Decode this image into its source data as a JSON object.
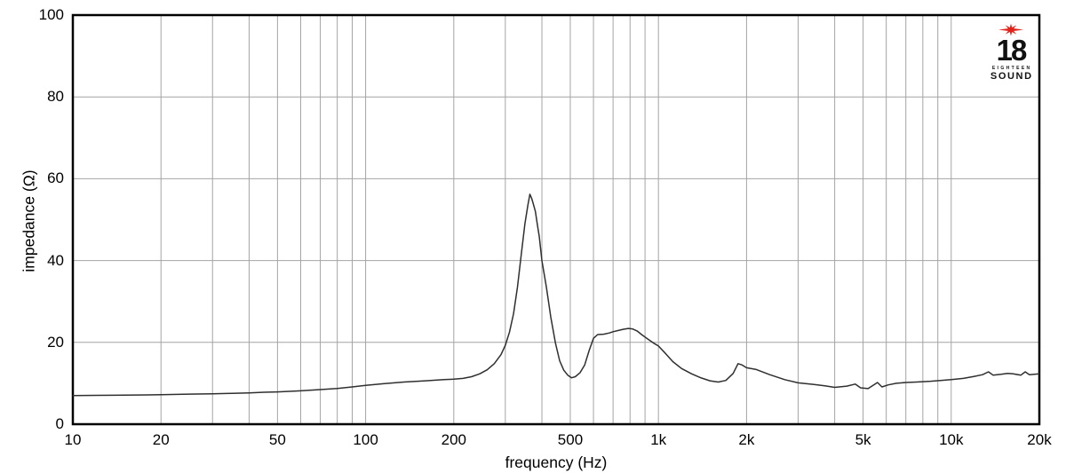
{
  "logo": {
    "number": "18",
    "brand_small": "EIGHTEEN",
    "brand": "SOUND",
    "star_color": "#e2231a",
    "text_color": "#111111"
  },
  "chart_data": {
    "type": "line",
    "title": "",
    "xlabel": "frequency (Hz)",
    "ylabel": "impedance (Ω)",
    "x_scale": "log",
    "x_range": [
      10,
      20000
    ],
    "y_range": [
      0,
      100
    ],
    "grid": true,
    "legend": "none",
    "line_color": "#2f2f2f",
    "grid_color": "#a4a4a4",
    "frame_color": "#000000",
    "x_ticks": [
      {
        "f": 10,
        "label": "10"
      },
      {
        "f": 20,
        "label": "20"
      },
      {
        "f": 50,
        "label": "50"
      },
      {
        "f": 100,
        "label": "100"
      },
      {
        "f": 200,
        "label": "200"
      },
      {
        "f": 500,
        "label": "500"
      },
      {
        "f": 1000,
        "label": "1k"
      },
      {
        "f": 2000,
        "label": "2k"
      },
      {
        "f": 5000,
        "label": "5k"
      },
      {
        "f": 10000,
        "label": "10k"
      },
      {
        "f": 20000,
        "label": "20k"
      }
    ],
    "x_gridlines": [
      20,
      30,
      40,
      50,
      60,
      70,
      80,
      90,
      100,
      200,
      300,
      400,
      500,
      600,
      700,
      800,
      900,
      1000,
      2000,
      3000,
      4000,
      5000,
      6000,
      7000,
      8000,
      9000,
      10000
    ],
    "y_ticks": [
      {
        "v": 0,
        "label": "0"
      },
      {
        "v": 20,
        "label": "20"
      },
      {
        "v": 40,
        "label": "40"
      },
      {
        "v": 60,
        "label": "60"
      },
      {
        "v": 80,
        "label": "80"
      },
      {
        "v": 100,
        "label": "100"
      }
    ],
    "y_gridlines": [
      20,
      40,
      60,
      80
    ],
    "series": [
      {
        "name": "impedance",
        "points": [
          [
            10,
            7.0
          ],
          [
            12,
            7.05
          ],
          [
            15,
            7.1
          ],
          [
            18,
            7.15
          ],
          [
            20,
            7.2
          ],
          [
            25,
            7.35
          ],
          [
            30,
            7.45
          ],
          [
            35,
            7.55
          ],
          [
            40,
            7.65
          ],
          [
            45,
            7.8
          ],
          [
            50,
            7.9
          ],
          [
            60,
            8.15
          ],
          [
            70,
            8.45
          ],
          [
            80,
            8.75
          ],
          [
            90,
            9.1
          ],
          [
            100,
            9.5
          ],
          [
            115,
            9.9
          ],
          [
            135,
            10.3
          ],
          [
            160,
            10.6
          ],
          [
            185,
            10.9
          ],
          [
            200,
            11.0
          ],
          [
            215,
            11.2
          ],
          [
            230,
            11.6
          ],
          [
            245,
            12.3
          ],
          [
            260,
            13.3
          ],
          [
            275,
            14.8
          ],
          [
            290,
            17.0
          ],
          [
            300,
            19.3
          ],
          [
            310,
            22.5
          ],
          [
            320,
            27.0
          ],
          [
            330,
            33.5
          ],
          [
            340,
            41.5
          ],
          [
            350,
            49.0
          ],
          [
            358,
            53.5
          ],
          [
            364,
            56.2
          ],
          [
            369,
            55.2
          ],
          [
            374,
            53.8
          ],
          [
            380,
            52.0
          ],
          [
            386,
            48.8
          ],
          [
            392,
            45.8
          ],
          [
            400,
            40.0
          ],
          [
            414,
            33.6
          ],
          [
            429,
            26.2
          ],
          [
            445,
            19.8
          ],
          [
            460,
            15.5
          ],
          [
            475,
            13.2
          ],
          [
            490,
            12.0
          ],
          [
            505,
            11.35
          ],
          [
            520,
            11.6
          ],
          [
            540,
            12.6
          ],
          [
            560,
            14.5
          ],
          [
            580,
            18.0
          ],
          [
            600,
            21.0
          ],
          [
            620,
            21.9
          ],
          [
            650,
            22.0
          ],
          [
            680,
            22.3
          ],
          [
            700,
            22.6
          ],
          [
            730,
            22.9
          ],
          [
            760,
            23.2
          ],
          [
            790,
            23.4
          ],
          [
            815,
            23.3
          ],
          [
            845,
            22.8
          ],
          [
            880,
            21.8
          ],
          [
            920,
            20.8
          ],
          [
            960,
            19.9
          ],
          [
            1000,
            19.1
          ],
          [
            1060,
            17.2
          ],
          [
            1120,
            15.3
          ],
          [
            1200,
            13.6
          ],
          [
            1300,
            12.3
          ],
          [
            1400,
            11.3
          ],
          [
            1500,
            10.6
          ],
          [
            1600,
            10.3
          ],
          [
            1700,
            10.7
          ],
          [
            1800,
            12.4
          ],
          [
            1870,
            14.8
          ],
          [
            1930,
            14.5
          ],
          [
            2000,
            13.8
          ],
          [
            2150,
            13.4
          ],
          [
            2400,
            12.1
          ],
          [
            2700,
            10.9
          ],
          [
            3000,
            10.1
          ],
          [
            3400,
            9.7
          ],
          [
            3700,
            9.4
          ],
          [
            4000,
            9.0
          ],
          [
            4400,
            9.3
          ],
          [
            4700,
            9.8
          ],
          [
            4900,
            8.9
          ],
          [
            5200,
            8.7
          ],
          [
            5600,
            10.2
          ],
          [
            5800,
            9.1
          ],
          [
            6100,
            9.6
          ],
          [
            6500,
            10.0
          ],
          [
            7000,
            10.2
          ],
          [
            7600,
            10.3
          ],
          [
            8500,
            10.5
          ],
          [
            9200,
            10.7
          ],
          [
            10000,
            10.9
          ],
          [
            11000,
            11.2
          ],
          [
            12000,
            11.7
          ],
          [
            12800,
            12.1
          ],
          [
            13400,
            12.8
          ],
          [
            13900,
            12.0
          ],
          [
            14800,
            12.2
          ],
          [
            15600,
            12.4
          ],
          [
            16300,
            12.3
          ],
          [
            17300,
            12.0
          ],
          [
            17900,
            12.8
          ],
          [
            18500,
            12.1
          ],
          [
            19200,
            12.2
          ],
          [
            20000,
            12.3
          ]
        ]
      }
    ]
  }
}
